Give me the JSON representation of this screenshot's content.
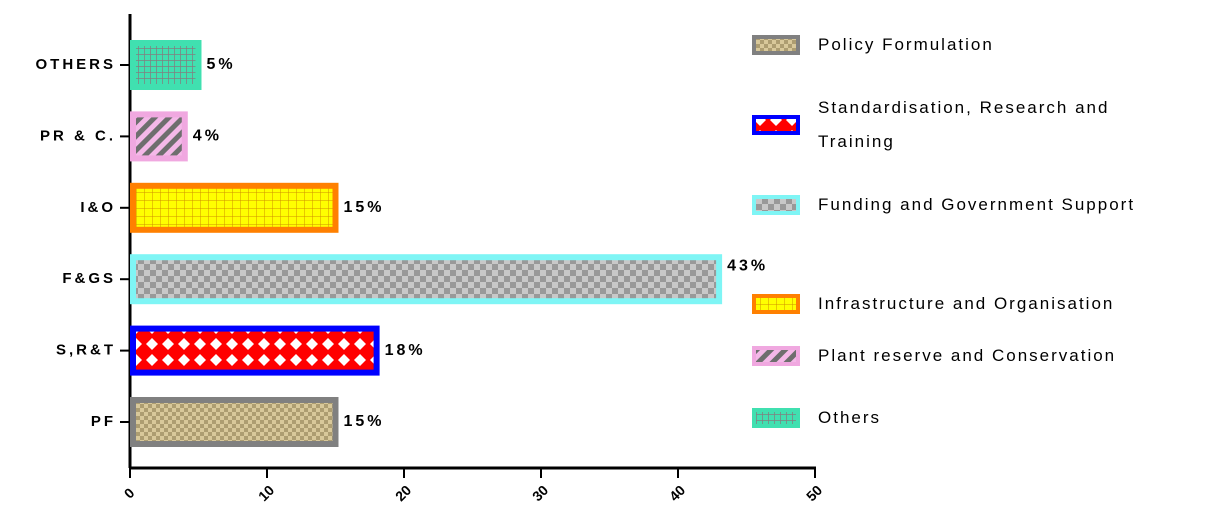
{
  "chart_data": {
    "type": "bar",
    "orientation": "horizontal",
    "categories": [
      "PF",
      "S,R&T",
      "F&GS",
      "I&O",
      "PR & C.",
      "OTHERS"
    ],
    "values": [
      15,
      18,
      43,
      15,
      4,
      5
    ],
    "value_labels": [
      "15%",
      "18%",
      "43%",
      "15%",
      "4%",
      "5%"
    ],
    "legend_labels": [
      "Policy Formulation",
      "Standardisation, Research and Training",
      "Funding and Government Support",
      "Infrastructure and Organisation",
      "Plant reserve and Conservation",
      "Others"
    ],
    "colors": [
      "#808080",
      "#0000ff",
      "#7ff5f5",
      "#ff8000",
      "#f0a8e0",
      "#40e0b0"
    ],
    "fill_colors": [
      "#d8c89a",
      "#ff0000",
      "#c8c8c8",
      "#ffff00",
      "#f4b8e8",
      "#40e0b0"
    ],
    "xlim": [
      0,
      50
    ],
    "xticks": [
      0,
      10,
      20,
      30,
      40,
      50
    ]
  }
}
